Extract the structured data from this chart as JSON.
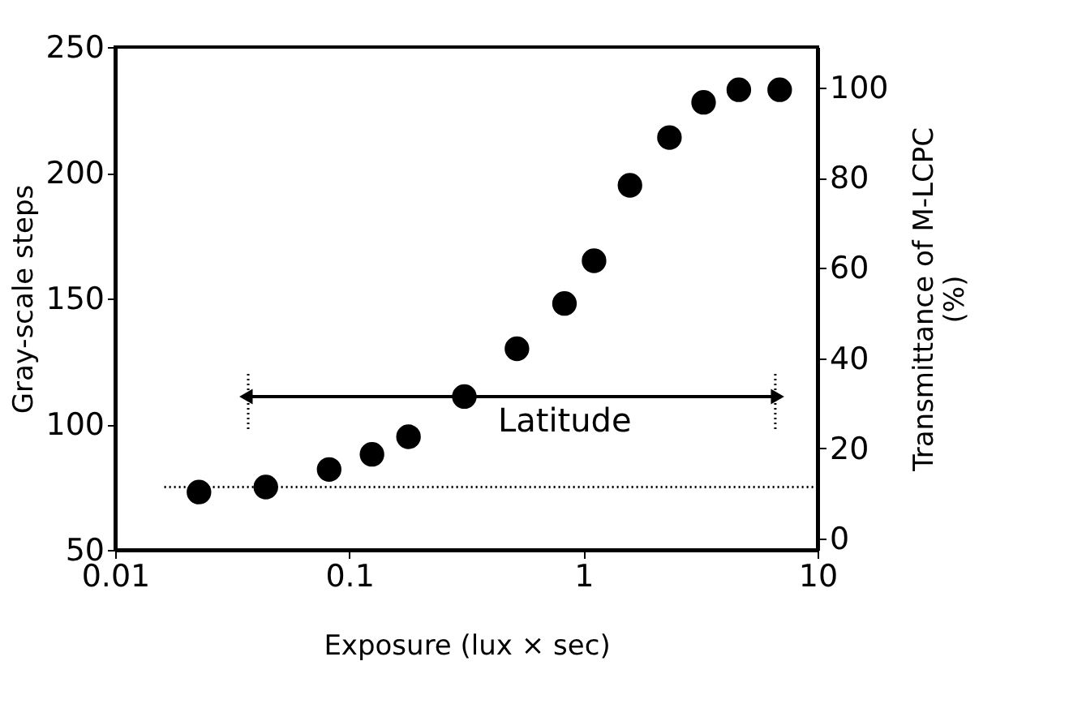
{
  "chart_data": {
    "type": "scatter",
    "xlabel": "Exposure (lux × sec)",
    "ylabel": "Gray-scale steps",
    "y2label": "Transmittance of M-LCPC\n(%)",
    "log": "x",
    "grid": false,
    "xlim": [
      0.01,
      10
    ],
    "xticks": [
      0.01,
      0.1,
      1,
      10
    ],
    "ylim": [
      50,
      250
    ],
    "yticks": [
      50,
      100,
      150,
      200,
      250
    ],
    "y2lim": [
      -2.5,
      109
    ],
    "y2ticks": [
      0,
      20,
      40,
      60,
      80,
      100
    ],
    "series": [
      {
        "color": "#000000",
        "marker": "circle",
        "x": [
          0.0228,
          0.044,
          0.082,
          0.125,
          0.179,
          0.31,
          0.52,
          0.83,
          1.11,
          1.58,
          2.33,
          3.26,
          4.61,
          6.89
        ],
        "values": [
          73,
          75,
          82,
          88,
          95,
          111,
          130,
          148,
          165,
          195,
          214,
          228,
          233,
          233
        ]
      },
      {
        "type": "line",
        "color": "#000000",
        "marker": "triangle",
        "line_style": "solid",
        "x": [
          0.037,
          6.6
        ],
        "values": [
          111,
          111
        ]
      }
    ],
    "ref_lines": [
      {
        "axis": "y",
        "value": 75,
        "color": "#000000",
        "line_style": "dotted"
      },
      {
        "axis": "x",
        "value": 0.037,
        "color": "#000000",
        "line_style": "dotted"
      },
      {
        "axis": "x",
        "value": 6.6,
        "color": "#000000",
        "line_style": "dotted"
      }
    ],
    "annotations": [
      "Latitude"
    ]
  }
}
